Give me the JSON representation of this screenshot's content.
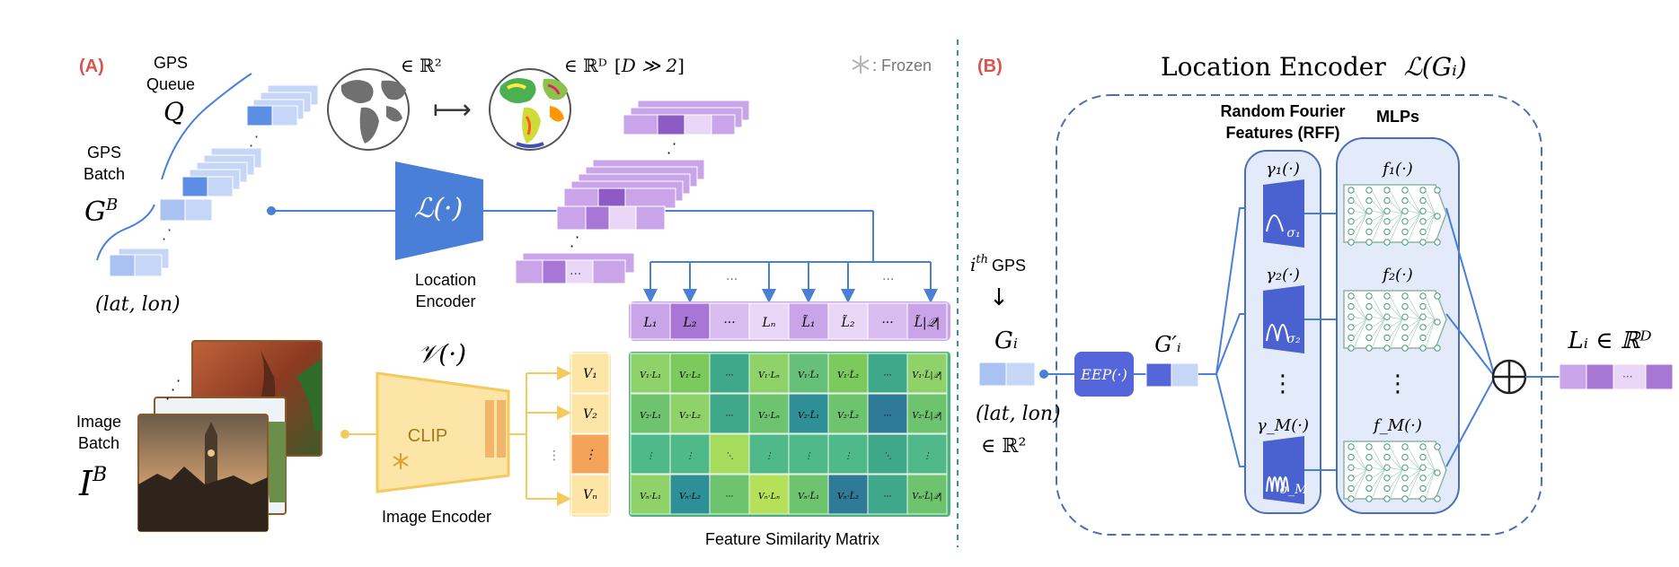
{
  "panel_a": {
    "label": "(A)",
    "gps_queue": {
      "line1": "GPS",
      "line2": "Queue",
      "symbol": "Q"
    },
    "gps_batch": {
      "line1": "GPS",
      "line2": "Batch",
      "symbol": "G",
      "sup": "B"
    },
    "latlon": "(lat, lon)",
    "r2": "∈ ℝ²",
    "maps_to": "⟼",
    "rd": "∈ ℝᴰ",
    "rd_cond": "D ≫ 2",
    "frozen": ": Frozen",
    "location_encoder": {
      "symbol": "ℒ(·)",
      "line1": "Location",
      "line2": "Encoder"
    },
    "image_encoder": {
      "symbol": "𝒱(·)",
      "name": "CLIP",
      "caption": "Image Encoder"
    },
    "image_batch": {
      "line1": "Image",
      "line2": "Batch",
      "symbol": "I",
      "sup": "B"
    },
    "loc_row": [
      "L₁",
      "L₂",
      "···",
      "Lₙ",
      "L̃₁",
      "L̃₂",
      "···",
      "L̃|𝒬|"
    ],
    "img_col": [
      "V₁",
      "V₂",
      "⋮",
      "Vₙ"
    ],
    "dots": "···",
    "matrix": [
      [
        "V₁·L₁",
        "V₁·L₂",
        "···",
        "V₁·Lₙ",
        "V₁·L̃₁",
        "V₁·L̃₂",
        "···",
        "V₁·L̃|𝒬|"
      ],
      [
        "V₂·L₁",
        "V₂·L₂",
        "···",
        "V₂·Lₙ",
        "V₂·L̃₁",
        "V₂·L̃₂",
        "···",
        "V₂·L̃|𝒬|"
      ],
      [
        "⋮",
        "⋮",
        "⋱",
        "⋮",
        "⋮",
        "⋮",
        "⋱",
        "⋮"
      ],
      [
        "Vₙ·L₁",
        "Vₙ·L₂",
        "···",
        "Vₙ·Lₙ",
        "Vₙ·L̃₁",
        "Vₙ·L̃₂",
        "···",
        "Vₙ·L̃|𝒬|"
      ]
    ],
    "matrix_caption": "Feature Similarity Matrix"
  },
  "panel_b": {
    "label": "(B)",
    "title": "Location Encoder",
    "title_symbol": "ℒ(Gᵢ)",
    "ith": "i",
    "ith_sup": "th",
    "gps": "GPS",
    "down_arrow": "↓",
    "gi": "Gᵢ",
    "latlon": "(lat, lon)",
    "r2": "∈ ℝ²",
    "eep": "EEP(·)",
    "gi_prime": "G′ᵢ",
    "rff_title_1": "Random Fourier",
    "rff_title_2": "Features (RFF)",
    "mlps_title": "MLPs",
    "gammas": [
      "γ₁(·)",
      "γ₂(·)",
      "γ_M(·)"
    ],
    "sigmas": [
      "σ₁",
      "σ₂",
      "σ_M"
    ],
    "fs": [
      "f₁(·)",
      "f₂(·)",
      "f_M(·)"
    ],
    "vdots": "⋮",
    "output": "Lᵢ ∈ ℝᴰ",
    "out_dots": "···"
  },
  "colors": {
    "red_label": "#d9534f",
    "blue": "#4a7fd8",
    "light_blue": "#b8cdf5",
    "purple": "#a877d6",
    "light_purple": "#d9bdf0",
    "yellow": "#f4c95d",
    "divider": "#3a8f8f"
  }
}
